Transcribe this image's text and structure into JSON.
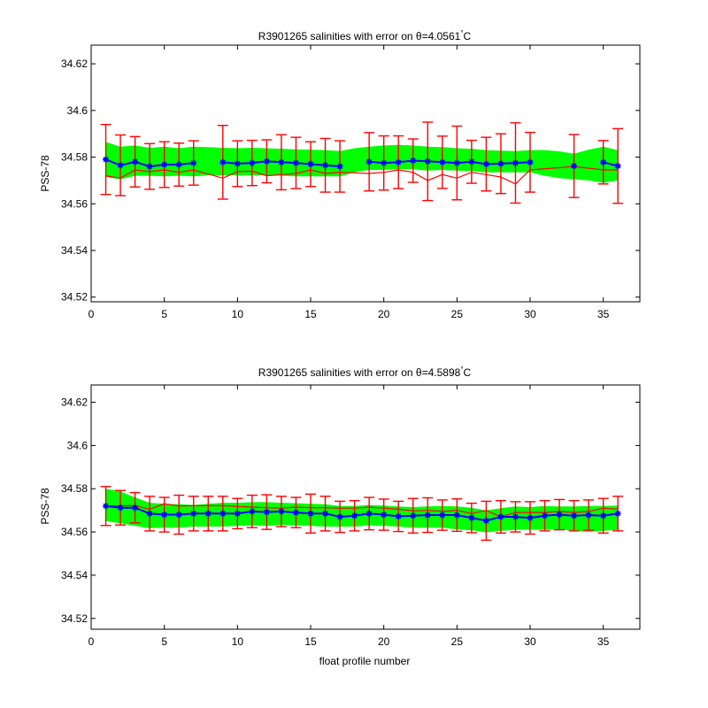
{
  "chart_data": [
    {
      "type": "line",
      "title": "R3901265 salinities with error on θ=4.0561°C",
      "title_parts": {
        "prefix": "R3901265 salinities with error on ",
        "theta": "θ",
        "value": "=4.0561",
        "degree": "°",
        "unit": "C"
      },
      "xlabel": "",
      "ylabel": "PSS-78",
      "xlim": [
        0,
        37.5
      ],
      "ylim": [
        34.518,
        34.628
      ],
      "xticks": [
        0,
        5,
        10,
        15,
        20,
        25,
        30,
        35
      ],
      "yticks": [
        34.52,
        34.54,
        34.56,
        34.58,
        34.6,
        34.62
      ],
      "ytick_labels": [
        "34.52",
        "34.54",
        "34.56",
        "34.58",
        "34.6",
        "34.62"
      ],
      "grid": false,
      "series": [
        {
          "role": "calibrated-salinity",
          "color": "#0000ff",
          "x": [
            1,
            2,
            3,
            4,
            5,
            6,
            7,
            9,
            10,
            11,
            12,
            13,
            14,
            15,
            16,
            17,
            19,
            20,
            21,
            22,
            23,
            24,
            25,
            26,
            27,
            28,
            29,
            30,
            33,
            35,
            36
          ],
          "values": [
            34.579,
            34.5765,
            34.578,
            34.576,
            34.5768,
            34.5768,
            34.5775,
            34.5778,
            34.5772,
            34.5775,
            34.5782,
            34.5778,
            34.5775,
            34.577,
            34.5765,
            34.576,
            34.578,
            34.5775,
            34.5778,
            34.5785,
            34.5782,
            34.5778,
            34.5775,
            34.578,
            34.577,
            34.5772,
            34.5775,
            34.5778,
            34.5762,
            34.5778,
            34.5762
          ],
          "error": [
            0.015,
            0.013,
            0.0108,
            0.0098,
            0.0098,
            0.0092,
            0.0095,
            0.0158,
            0.0098,
            0.0097,
            0.0092,
            0.0118,
            0.011,
            0.0096,
            0.0115,
            0.011,
            0.0125,
            0.0116,
            0.0113,
            0.0093,
            0.0168,
            0.0112,
            0.0158,
            0.0092,
            0.0115,
            0.0128,
            0.0172,
            0.0128,
            0.0135,
            0.0093,
            0.016
          ]
        },
        {
          "role": "original-salinity",
          "color": "#ff0000",
          "x": [
            1,
            2,
            3,
            4,
            5,
            6,
            7,
            9,
            10,
            11,
            12,
            13,
            14,
            15,
            16,
            17,
            19,
            20,
            21,
            22,
            23,
            24,
            25,
            26,
            27,
            28,
            29,
            30,
            33,
            35,
            36
          ],
          "values": [
            34.572,
            34.571,
            34.5745,
            34.5738,
            34.5745,
            34.5735,
            34.5745,
            34.571,
            34.5738,
            34.574,
            34.572,
            34.5725,
            34.573,
            34.5745,
            34.573,
            34.5735,
            34.573,
            34.5735,
            34.5745,
            34.5735,
            34.57,
            34.5725,
            34.571,
            34.5735,
            34.5725,
            34.5715,
            34.5685,
            34.5745,
            34.576,
            34.5745,
            34.5745
          ]
        }
      ],
      "mapping_band": {
        "color": "#00ff00",
        "x": [
          1,
          2,
          3,
          4,
          5,
          6,
          7,
          8,
          9,
          10,
          11,
          12,
          13,
          14,
          15,
          16,
          17,
          18,
          19,
          20,
          21,
          22,
          23,
          24,
          25,
          26,
          27,
          28,
          29,
          30,
          31,
          32,
          33,
          34,
          35,
          36
        ],
        "upper": [
          34.5865,
          34.5845,
          34.585,
          34.584,
          34.5845,
          34.5838,
          34.5845,
          34.5843,
          34.584,
          34.5838,
          34.584,
          34.5838,
          34.5836,
          34.5833,
          34.5832,
          34.583,
          34.5826,
          34.5838,
          34.5845,
          34.585,
          34.5852,
          34.585,
          34.5845,
          34.5843,
          34.5838,
          34.5836,
          34.583,
          34.5828,
          34.5826,
          34.583,
          34.583,
          34.5825,
          34.5815,
          34.5832,
          34.5845,
          34.583
        ],
        "lower": [
          34.5715,
          34.5705,
          34.572,
          34.572,
          34.5718,
          34.572,
          34.5718,
          34.5722,
          34.5722,
          34.5722,
          34.5722,
          34.5722,
          34.572,
          34.5718,
          34.5718,
          34.5718,
          34.5718,
          34.5735,
          34.5745,
          34.5745,
          34.5748,
          34.5748,
          34.5742,
          34.5745,
          34.5742,
          34.574,
          34.5735,
          34.5735,
          34.5735,
          34.5735,
          34.572,
          34.571,
          34.5705,
          34.57,
          34.569,
          34.57
        ]
      }
    },
    {
      "type": "line",
      "title": "R3901265 salinities with error on θ=4.5898°C",
      "title_parts": {
        "prefix": "R3901265 salinities with error on ",
        "theta": "θ",
        "value": "=4.5898",
        "degree": "°",
        "unit": "C"
      },
      "xlabel": "float profile number",
      "ylabel": "PSS-78",
      "xlim": [
        0,
        37.5
      ],
      "ylim": [
        34.515,
        34.628
      ],
      "xticks": [
        0,
        5,
        10,
        15,
        20,
        25,
        30,
        35
      ],
      "yticks": [
        34.52,
        34.54,
        34.56,
        34.58,
        34.6,
        34.62
      ],
      "ytick_labels": [
        "34.52",
        "34.54",
        "34.56",
        "34.58",
        "34.6",
        "34.62"
      ],
      "grid": false,
      "series": [
        {
          "role": "calibrated-salinity",
          "color": "#0000ff",
          "x": [
            1,
            2,
            3,
            4,
            5,
            6,
            7,
            8,
            9,
            10,
            11,
            12,
            13,
            14,
            15,
            16,
            17,
            18,
            19,
            20,
            21,
            22,
            23,
            24,
            25,
            26,
            27,
            28,
            29,
            30,
            31,
            32,
            33,
            34,
            35,
            36
          ],
          "values": [
            34.572,
            34.5712,
            34.5712,
            34.5685,
            34.568,
            34.568,
            34.5685,
            34.5685,
            34.5685,
            34.5685,
            34.5695,
            34.5692,
            34.5695,
            34.569,
            34.5685,
            34.5685,
            34.567,
            34.5675,
            34.5685,
            34.568,
            34.5672,
            34.5675,
            34.5678,
            34.5678,
            34.5678,
            34.5665,
            34.5652,
            34.567,
            34.567,
            34.5665,
            34.5675,
            34.568,
            34.5675,
            34.5678,
            34.5675,
            34.5685
          ],
          "error": [
            0.009,
            0.008,
            0.007,
            0.008,
            0.008,
            0.009,
            0.008,
            0.008,
            0.008,
            0.007,
            0.0075,
            0.008,
            0.007,
            0.007,
            0.009,
            0.008,
            0.0072,
            0.007,
            0.0075,
            0.0072,
            0.007,
            0.008,
            0.008,
            0.007,
            0.0075,
            0.0068,
            0.009,
            0.0075,
            0.007,
            0.0075,
            0.007,
            0.007,
            0.007,
            0.007,
            0.008,
            0.008
          ]
        },
        {
          "role": "original-salinity",
          "color": "#ff0000",
          "x": [
            1,
            2,
            3,
            4,
            5,
            6,
            7,
            8,
            9,
            10,
            11,
            12,
            13,
            14,
            15,
            16,
            17,
            18,
            19,
            20,
            21,
            22,
            23,
            24,
            25,
            26,
            27,
            28,
            29,
            30,
            31,
            32,
            33,
            34,
            35,
            36
          ],
          "values": [
            34.572,
            34.5722,
            34.5722,
            34.5705,
            34.573,
            34.572,
            34.5722,
            34.5722,
            34.5722,
            34.5718,
            34.5715,
            34.5712,
            34.571,
            34.5715,
            34.5712,
            34.5712,
            34.571,
            34.571,
            34.5715,
            34.571,
            34.5705,
            34.5698,
            34.57,
            34.5695,
            34.57,
            34.5685,
            34.57,
            34.567,
            34.569,
            34.569,
            34.569,
            34.5695,
            34.569,
            34.5695,
            34.571,
            34.5705
          ]
        }
      ],
      "mapping_band": {
        "color": "#00ff00",
        "x": [
          1,
          2,
          3,
          4,
          5,
          6,
          7,
          8,
          9,
          10,
          11,
          12,
          13,
          14,
          15,
          16,
          17,
          18,
          19,
          20,
          21,
          22,
          23,
          24,
          25,
          26,
          27,
          28,
          29,
          30,
          31,
          32,
          33,
          34,
          35,
          36
        ],
        "upper": [
          34.58,
          34.5788,
          34.576,
          34.5735,
          34.573,
          34.5728,
          34.5725,
          34.573,
          34.5735,
          34.5735,
          34.5738,
          34.5738,
          34.5735,
          34.5733,
          34.573,
          34.5728,
          34.572,
          34.572,
          34.5725,
          34.5722,
          34.5718,
          34.5715,
          34.5718,
          34.572,
          34.5718,
          34.5712,
          34.57,
          34.571,
          34.5718,
          34.5715,
          34.572,
          34.5718,
          34.5718,
          34.572,
          34.572,
          34.5722
        ],
        "lower": [
          34.565,
          34.564,
          34.5628,
          34.5618,
          34.562,
          34.562,
          34.5625,
          34.5625,
          34.5625,
          34.5628,
          34.563,
          34.5628,
          34.5632,
          34.563,
          34.5628,
          34.5625,
          34.5625,
          34.5625,
          34.563,
          34.5628,
          34.5625,
          34.562,
          34.562,
          34.562,
          34.5612,
          34.5608,
          34.5598,
          34.5605,
          34.561,
          34.561,
          34.561,
          34.5612,
          34.5605,
          34.56,
          34.5605,
          34.561
        ]
      }
    }
  ]
}
